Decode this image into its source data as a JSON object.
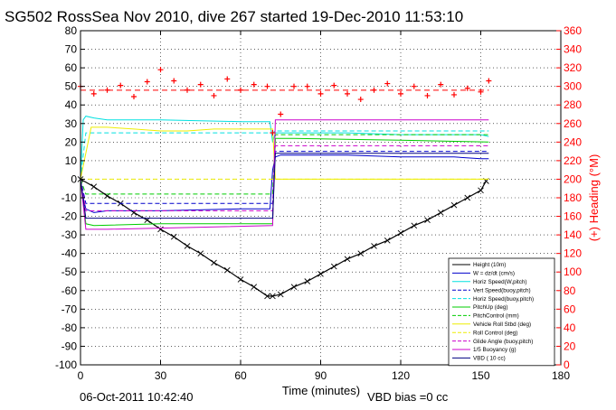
{
  "chart_data": {
    "type": "line",
    "title": "SG502 RossSea Nov 2010, dive 267 started 19-Dec-2010 11:53:10",
    "xlabel": "Time (minutes)",
    "ylabel_right": "(+) Heading (°M)",
    "footer_left": "06-Oct-2011 10:42:40",
    "footer_right": "VBD bias =0 cc",
    "xlim": [
      0,
      180
    ],
    "ylim": [
      -100,
      80
    ],
    "y2lim": [
      0,
      360
    ],
    "xticks": [
      "0",
      "30",
      "60",
      "90",
      "120",
      "150",
      "180"
    ],
    "yticks": [
      "80",
      "70",
      "60",
      "50",
      "40",
      "30",
      "20",
      "10",
      "0",
      "-10",
      "-20",
      "-30",
      "-40",
      "-50",
      "-60",
      "-70",
      "-80",
      "-90",
      "-100"
    ],
    "y2ticks": [
      "360",
      "340",
      "320",
      "300",
      "280",
      "260",
      "240",
      "220",
      "200",
      "180",
      "160",
      "140",
      "120",
      "100",
      "80",
      "60",
      "40",
      "20",
      "0"
    ],
    "grid": true,
    "legend_position": "bottom-right",
    "colors": {
      "height": "#000000",
      "w": "#0000cc",
      "horiz_speed": "#00e0e0",
      "pitch": "#00cc00",
      "roll": "#eeee00",
      "buoyancy": "#cc00cc",
      "heading": "#ff0000",
      "vbd": "#000080"
    },
    "legend": [
      "Height (10m)",
      "W = dz/dt (cm/s)",
      "Horiz Speed(W,pitch)",
      "Vert Speed(buoy,pitch)",
      "Horiz Speed(buoy,pitch)",
      "PitchUp (deg)",
      "PitchControl (mm)",
      "Vehicle Roll Stbd (deg)",
      "Roll Control (deg)",
      "Glide Angle (buoy,pitch)",
      "1/5 Buoyancy (g)",
      "VBD ( 10 cc)",
      "(+) Heading (°M)"
    ],
    "series": [
      {
        "name": "Height (10m)",
        "x": [
          0,
          5,
          10,
          15,
          20,
          25,
          30,
          35,
          40,
          45,
          50,
          55,
          60,
          65,
          70,
          72,
          75,
          80,
          85,
          90,
          95,
          100,
          105,
          110,
          115,
          120,
          125,
          130,
          135,
          140,
          145,
          150,
          152
        ],
        "y": [
          0,
          -4,
          -9,
          -13,
          -18,
          -22,
          -27,
          -31,
          -36,
          -40,
          -45,
          -49,
          -54,
          -58,
          -63,
          -63,
          -62,
          -58,
          -55,
          -51,
          -47,
          -43,
          -40,
          -36,
          -33,
          -29,
          -25,
          -22,
          -18,
          -14,
          -10,
          -6,
          -1
        ]
      },
      {
        "name": "W = dz/dt (cm/s)",
        "x": [
          0,
          1,
          2,
          5,
          10,
          30,
          60,
          70,
          71,
          72,
          73,
          75,
          80,
          100,
          120,
          140,
          150,
          153
        ],
        "y": [
          0,
          -10,
          -16,
          -18,
          -17,
          -17,
          -16,
          -16,
          -16,
          5,
          12,
          13,
          13,
          13,
          12,
          12,
          11,
          11
        ]
      },
      {
        "name": "Horiz Speed(W,pitch)",
        "x": [
          0,
          1,
          2,
          5,
          10,
          30,
          60,
          70,
          71,
          72,
          73,
          75,
          80,
          100,
          120,
          140,
          150,
          153
        ],
        "y": [
          0,
          32,
          34,
          33,
          32,
          32,
          31,
          31,
          31,
          20,
          25,
          25,
          25,
          25,
          24,
          24,
          24,
          23
        ]
      },
      {
        "name": "Vert Speed(buoy,pitch)",
        "x": [
          0,
          2,
          10,
          72,
          73,
          153
        ],
        "y": [
          0,
          -13,
          -13,
          -13,
          15,
          15
        ]
      },
      {
        "name": "Horiz Speed(buoy,pitch)",
        "x": [
          0,
          2,
          10,
          72,
          73,
          153
        ],
        "y": [
          0,
          25,
          25,
          25,
          26,
          26
        ]
      },
      {
        "name": "PitchUp (deg)",
        "x": [
          0,
          2,
          5,
          30,
          60,
          72,
          73,
          80,
          120,
          153
        ],
        "y": [
          0,
          -24,
          -25,
          -24,
          -24,
          -24,
          22,
          22,
          21,
          20
        ]
      },
      {
        "name": "PitchControl (mm)",
        "x": [
          0,
          2,
          72,
          73,
          153
        ],
        "y": [
          0,
          -8,
          -8,
          24,
          24
        ]
      },
      {
        "name": "Vehicle Roll Stbd (deg)",
        "x": [
          0,
          4,
          10,
          20,
          30,
          40,
          50,
          60,
          72,
          73,
          80,
          90,
          100,
          110,
          120,
          130,
          140,
          150,
          153
        ],
        "y": [
          0,
          28,
          28,
          27,
          26,
          26,
          27,
          27,
          27,
          0,
          0,
          0,
          0,
          0,
          0,
          0,
          0,
          0,
          0
        ]
      },
      {
        "name": "Roll Control (deg)",
        "x": [
          0,
          153
        ],
        "y": [
          0,
          0
        ]
      },
      {
        "name": "Glide Angle (buoy,pitch)",
        "x": [
          0,
          2,
          72,
          73,
          153
        ],
        "y": [
          0,
          -17,
          -17,
          18,
          18
        ]
      },
      {
        "name": "1/5 Buoyancy (g)",
        "x": [
          0,
          2,
          10,
          72,
          73,
          153
        ],
        "y": [
          0,
          -27,
          -27,
          -25,
          32,
          32
        ]
      },
      {
        "name": "VBD ( 10 cc)",
        "x": [
          0,
          2,
          10,
          72,
          73,
          153
        ],
        "y": [
          0,
          -21,
          -21,
          -21,
          14,
          14
        ]
      },
      {
        "name": "(+) Heading (°M)",
        "axis": "right",
        "x": [
          0,
          5,
          10,
          15,
          20,
          25,
          30,
          35,
          40,
          45,
          50,
          55,
          60,
          65,
          70,
          72,
          75,
          80,
          85,
          90,
          95,
          100,
          105,
          110,
          115,
          120,
          125,
          130,
          135,
          140,
          145,
          150,
          153
        ],
        "y": [
          300,
          292,
          296,
          301,
          289,
          305,
          318,
          306,
          296,
          302,
          290,
          308,
          296,
          302,
          300,
          250,
          270,
          300,
          300,
          292,
          301,
          292,
          286,
          296,
          303,
          292,
          300,
          290,
          302,
          291,
          298,
          294,
          306
        ]
      }
    ]
  }
}
